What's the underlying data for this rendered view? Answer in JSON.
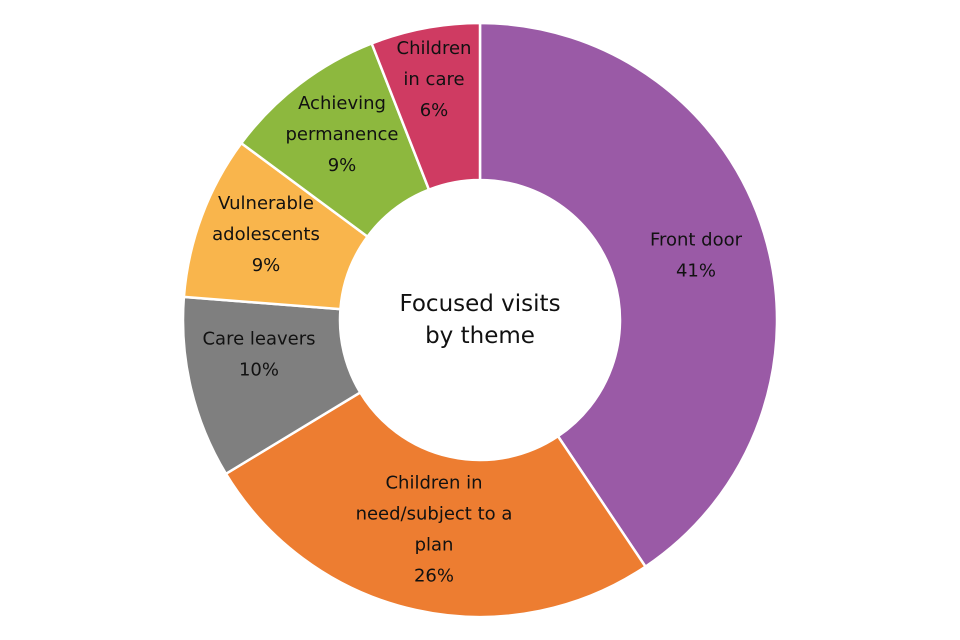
{
  "chart_data": {
    "type": "donut",
    "title": "Focused visits by theme",
    "categories": [
      "Front door",
      "Children in need/subject to a plan",
      "Care leavers",
      "Vulnerable adolescents",
      "Achieving permanence",
      "Children in care"
    ],
    "values": [
      41,
      26,
      10,
      9,
      9,
      6
    ],
    "value_labels": [
      "41%",
      "26%",
      "10%",
      "9%",
      "9%",
      "6%"
    ],
    "colors": [
      "#9a5aa6",
      "#ed7d31",
      "#7f7f7f",
      "#f9b54c",
      "#8db83e",
      "#cf3b62"
    ]
  }
}
